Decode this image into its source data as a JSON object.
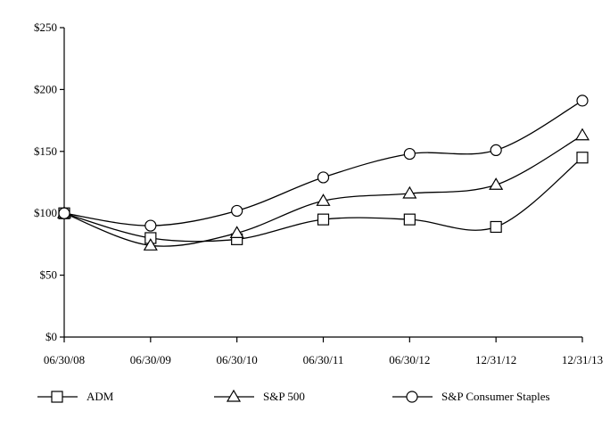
{
  "chart_data": {
    "type": "line",
    "title": "",
    "xlabel": "",
    "ylabel": "",
    "categories": [
      "06/30/08",
      "06/30/09",
      "06/30/10",
      "06/30/11",
      "06/30/12",
      "12/31/12",
      "12/31/13"
    ],
    "y_tick_labels": [
      "$0",
      "$50",
      "$100",
      "$150",
      "$200",
      "$250"
    ],
    "y_ticks": [
      0,
      50,
      100,
      150,
      200,
      250
    ],
    "ylim": [
      0,
      250
    ],
    "grid": false,
    "legend_position": "bottom",
    "series": [
      {
        "name": "ADM",
        "marker": "square",
        "values": [
          100,
          80,
          79,
          95,
          95,
          89,
          145
        ]
      },
      {
        "name": "S&P 500",
        "marker": "triangle",
        "values": [
          100,
          74,
          84,
          110,
          116,
          123,
          163
        ]
      },
      {
        "name": "S&P Consumer Staples",
        "marker": "circle",
        "values": [
          100,
          90,
          102,
          129,
          148,
          151,
          191
        ]
      }
    ]
  }
}
